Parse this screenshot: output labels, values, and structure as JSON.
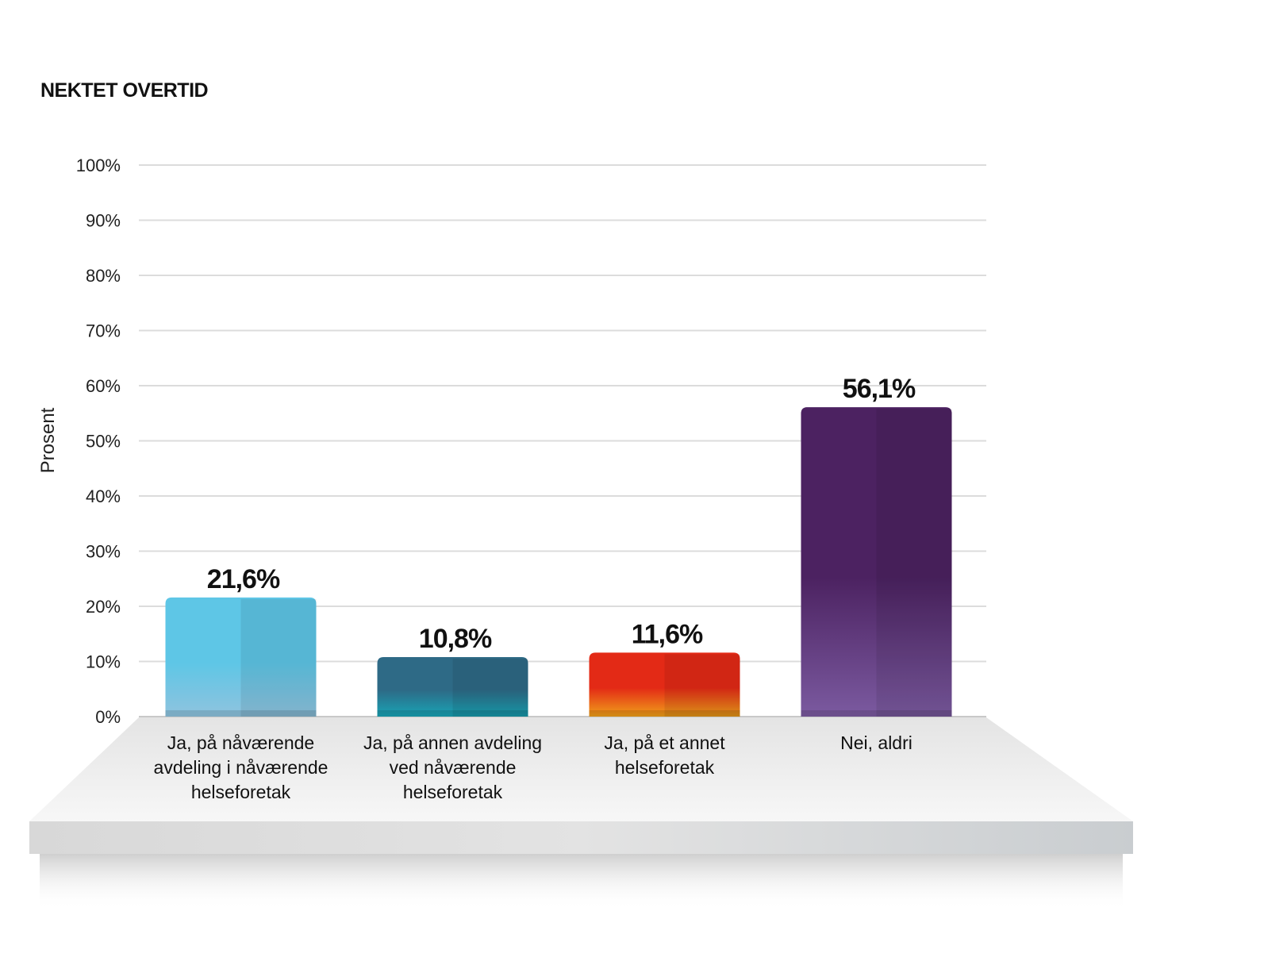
{
  "chart_data": {
    "type": "bar",
    "title": "NEKTET OVERTID",
    "ylabel": "Prosent",
    "xlabel": "",
    "ylim": [
      0,
      100
    ],
    "yticks": [
      0,
      10,
      20,
      30,
      40,
      50,
      60,
      70,
      80,
      90,
      100
    ],
    "ytick_labels": [
      "0%",
      "10%",
      "20%",
      "30%",
      "40%",
      "50%",
      "60%",
      "70%",
      "80%",
      "90%",
      "100%"
    ],
    "grid": true,
    "categories": [
      [
        "Ja, på nåværende",
        "avdeling i nåværende",
        "helseforetak"
      ],
      [
        "Ja, på annen avdeling",
        "ved nåværende",
        "helseforetak"
      ],
      [
        "Ja, på et annet",
        "helseforetak"
      ],
      [
        "Nei, aldri"
      ]
    ],
    "values": [
      21.6,
      10.8,
      11.6,
      56.1
    ],
    "value_labels": [
      "21,6%",
      "10,8%",
      "11,6%",
      "56,1%"
    ],
    "colors": [
      [
        "#5ec6e6",
        "#8fc3de"
      ],
      [
        "#2e6a86",
        "#18a3b5"
      ],
      [
        "#e32a16",
        "#f0a01a"
      ],
      [
        "#4c2261",
        "#7b5aa0"
      ]
    ]
  }
}
